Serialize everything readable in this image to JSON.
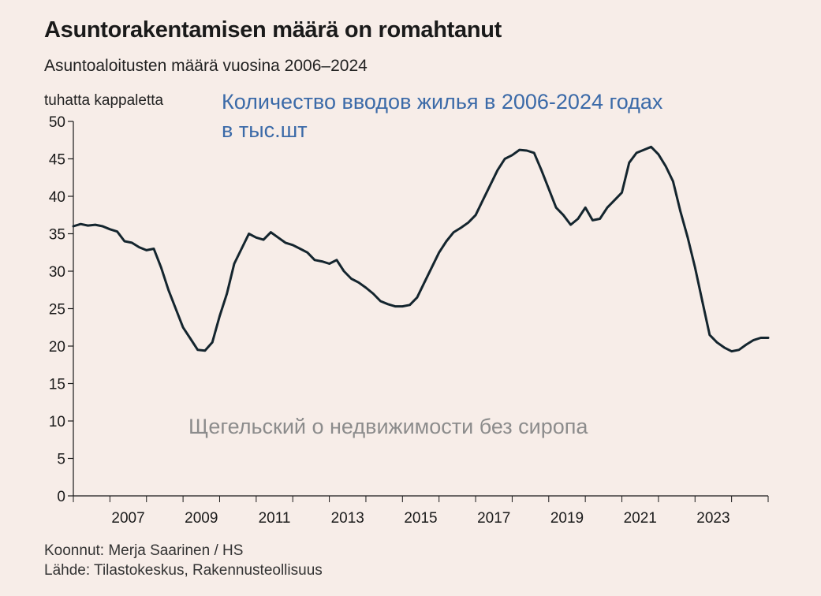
{
  "title": "Asuntorakentamisen määrä on romahtanut",
  "subtitle": "Asuntoaloitusten määrä vuosina 2006–2024",
  "unit_label": "tuhatta kappaletta",
  "ru_note_line1": "Количество вводов жилья в 2006-2024 годах",
  "ru_note_line2": "в тыс.шт",
  "watermark": "Щегельский о недвижимости без сиропа",
  "credit_compiled": "Koonnut: Merja Saarinen / HS",
  "credit_source": "Lähde: Tilastokeskus, Rakennusteollisuus",
  "colors": {
    "background": "#f7ede8",
    "line": "#14252e",
    "axis": "#1a1a1a",
    "note": "#3b6aa8"
  },
  "chart_data": {
    "type": "line",
    "xlim": [
      2006,
      2025.0
    ],
    "ylim": [
      0,
      50
    ],
    "y_ticks": [
      0,
      5,
      10,
      15,
      20,
      25,
      30,
      35,
      40,
      45,
      50
    ],
    "x_ticks": [
      2007,
      2009,
      2011,
      2013,
      2015,
      2017,
      2019,
      2021,
      2023
    ],
    "grid": false,
    "x": [
      2006.0,
      2006.2,
      2006.4,
      2006.6,
      2006.8,
      2007.0,
      2007.2,
      2007.4,
      2007.6,
      2007.8,
      2008.0,
      2008.2,
      2008.4,
      2008.6,
      2008.8,
      2009.0,
      2009.2,
      2009.4,
      2009.6,
      2009.8,
      2010.0,
      2010.2,
      2010.4,
      2010.6,
      2010.8,
      2011.0,
      2011.2,
      2011.4,
      2011.6,
      2011.8,
      2012.0,
      2012.2,
      2012.4,
      2012.6,
      2012.8,
      2013.0,
      2013.2,
      2013.4,
      2013.6,
      2013.8,
      2014.0,
      2014.2,
      2014.4,
      2014.6,
      2014.8,
      2015.0,
      2015.2,
      2015.4,
      2015.6,
      2015.8,
      2016.0,
      2016.2,
      2016.4,
      2016.6,
      2016.8,
      2017.0,
      2017.2,
      2017.4,
      2017.6,
      2017.8,
      2018.0,
      2018.2,
      2018.4,
      2018.6,
      2018.8,
      2019.0,
      2019.2,
      2019.4,
      2019.6,
      2019.8,
      2020.0,
      2020.2,
      2020.4,
      2020.6,
      2020.8,
      2021.0,
      2021.2,
      2021.4,
      2021.6,
      2021.8,
      2022.0,
      2022.2,
      2022.4,
      2022.6,
      2022.8,
      2023.0,
      2023.2,
      2023.4,
      2023.6,
      2023.8,
      2024.0,
      2024.2,
      2024.4,
      2024.6,
      2024.8,
      2025.0
    ],
    "y": [
      36.0,
      36.3,
      36.1,
      36.2,
      36.0,
      35.6,
      35.3,
      34.0,
      33.8,
      33.2,
      32.8,
      33.0,
      30.5,
      27.5,
      25.0,
      22.5,
      21.0,
      19.5,
      19.4,
      20.5,
      24.0,
      27.0,
      31.0,
      33.0,
      35.0,
      34.5,
      34.2,
      35.2,
      34.5,
      33.8,
      33.5,
      33.0,
      32.5,
      31.5,
      31.3,
      31.0,
      31.5,
      30.0,
      29.0,
      28.5,
      27.8,
      27.0,
      26.0,
      25.6,
      25.3,
      25.3,
      25.5,
      26.5,
      28.5,
      30.5,
      32.5,
      34.0,
      35.2,
      35.8,
      36.5,
      37.5,
      39.5,
      41.5,
      43.5,
      45.0,
      45.5,
      46.2,
      46.1,
      45.8,
      43.5,
      41.0,
      38.5,
      37.5,
      36.2,
      37.0,
      38.5,
      36.8,
      37.0,
      38.5,
      39.5,
      40.5,
      44.5,
      45.8,
      46.2,
      46.6,
      45.6,
      44.0,
      42.0,
      38.0,
      34.5,
      30.5,
      26.0,
      21.5,
      20.5,
      19.8,
      19.3,
      19.5,
      20.2,
      20.8,
      21.1,
      21.1
    ]
  }
}
